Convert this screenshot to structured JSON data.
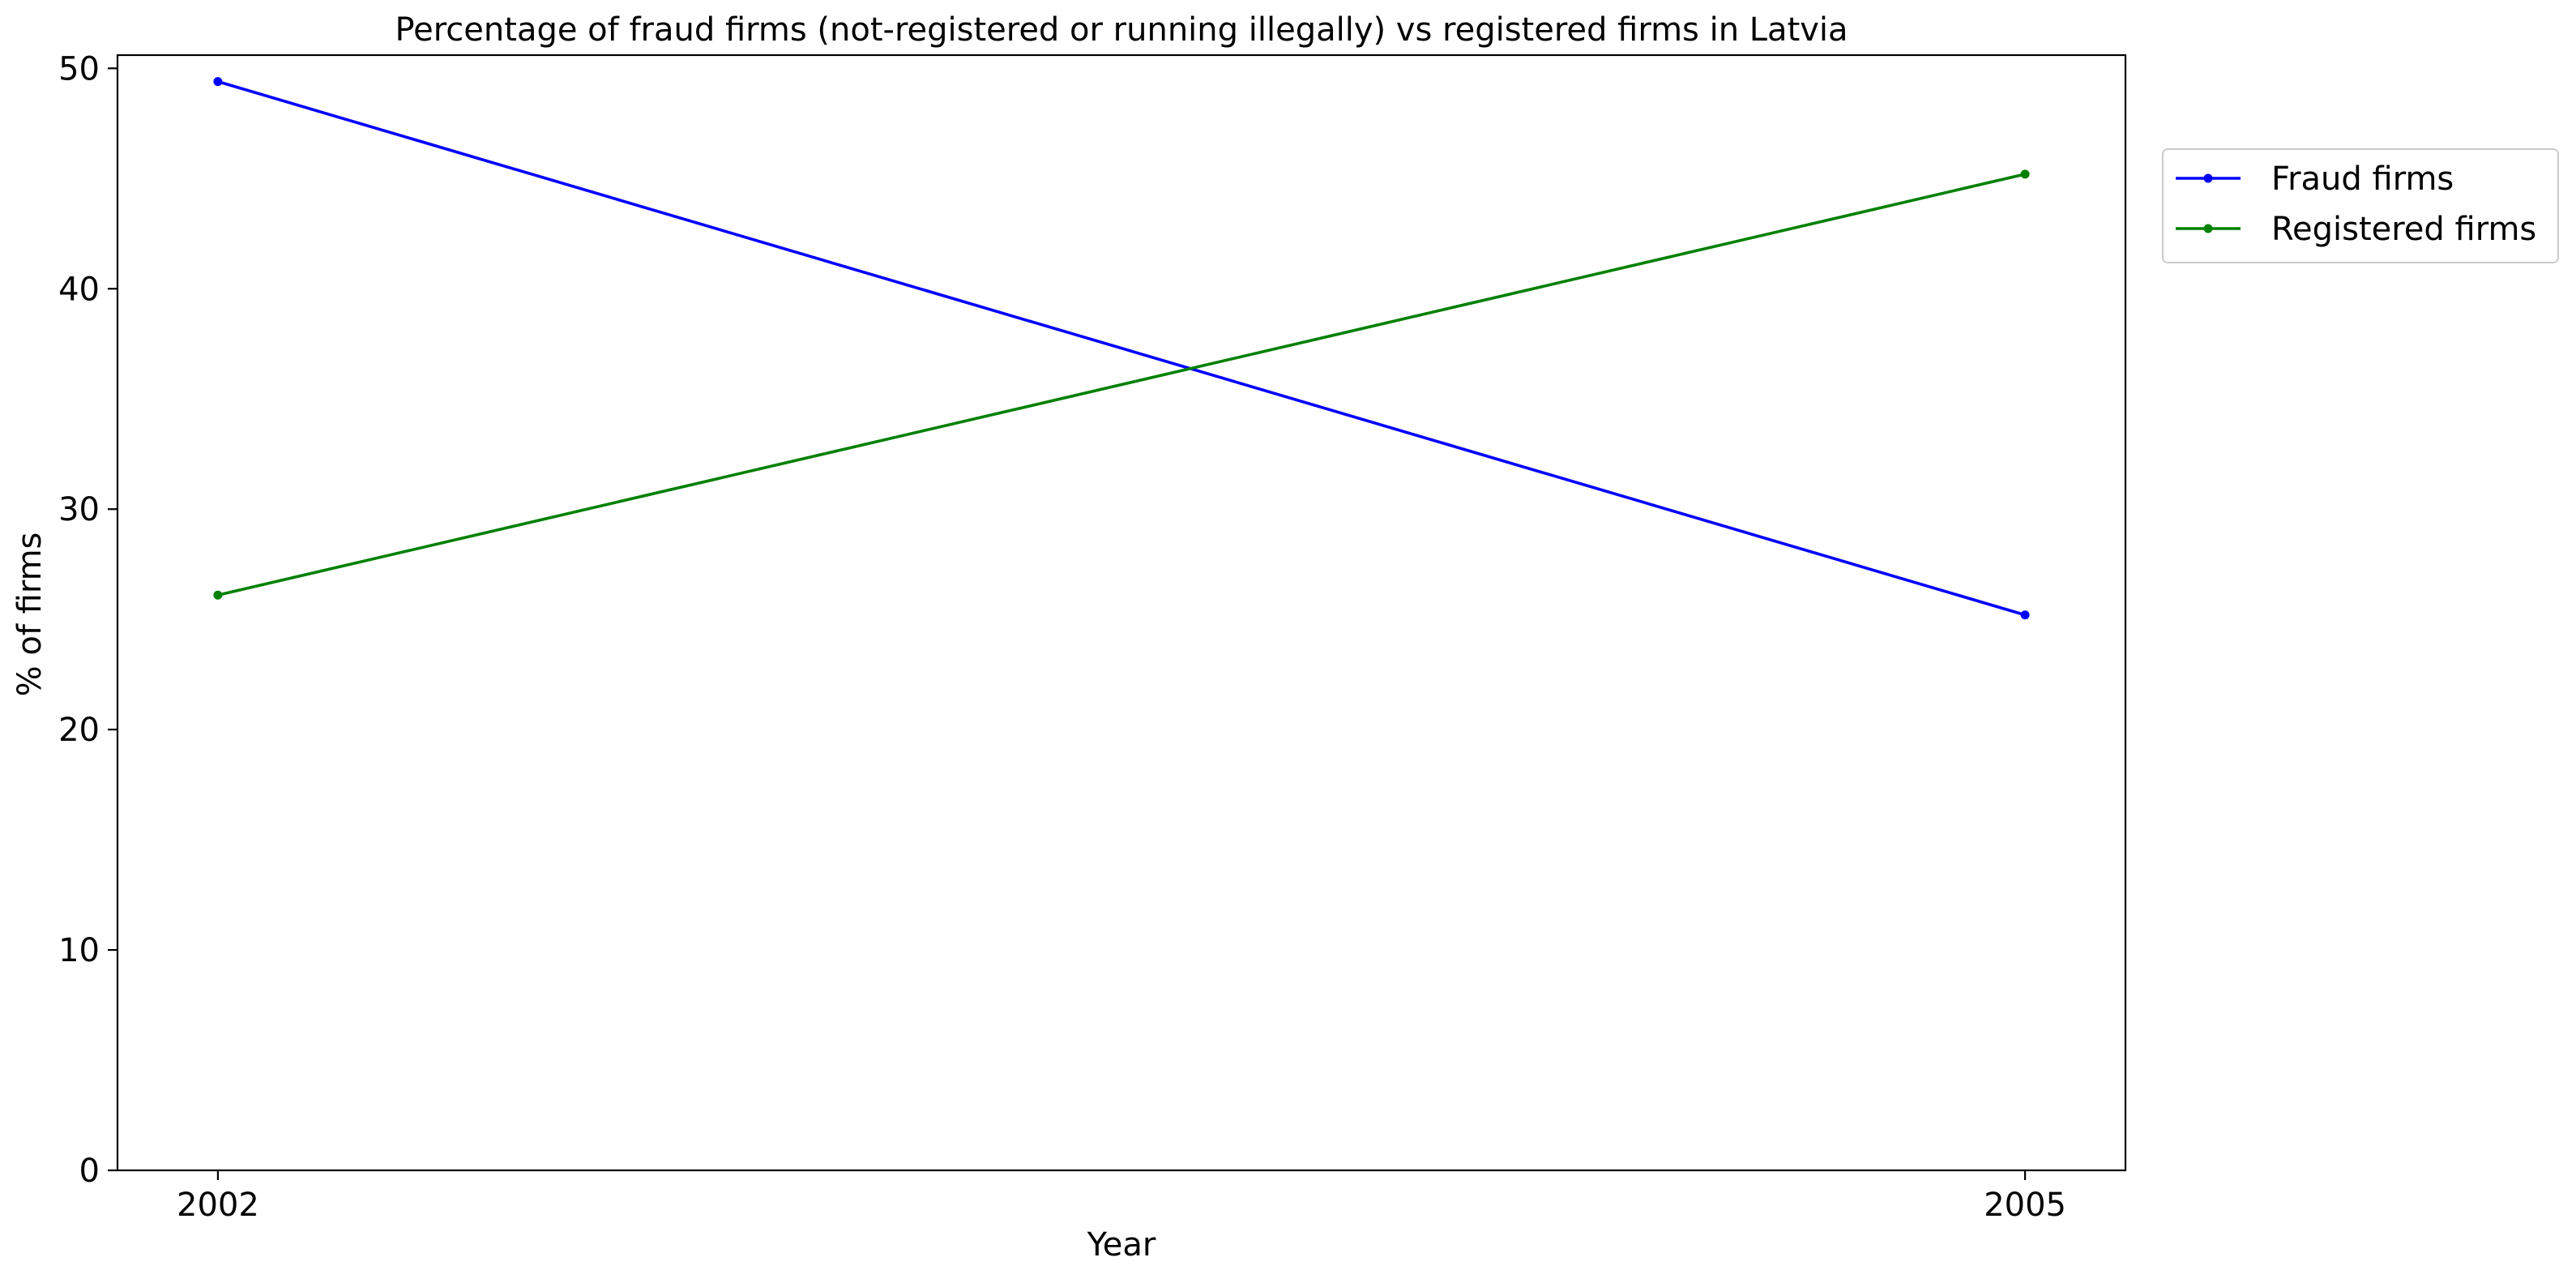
{
  "chart_data": {
    "type": "line",
    "title": "Percentage of fraud firms (not-registered or running illegally) vs registered firms in Latvia",
    "xlabel": "Year",
    "ylabel": "% of firms",
    "categories": [
      "2002",
      "2005"
    ],
    "series": [
      {
        "name": "Fraud firms",
        "values": [
          49.4,
          25.2
        ],
        "color": "#0000ff"
      },
      {
        "name": "Registered firms",
        "values": [
          26.1,
          45.2
        ],
        "color": "#008000"
      }
    ],
    "ylim": [
      0,
      50.6
    ],
    "yticks": [
      0,
      10,
      20,
      30,
      40,
      50
    ],
    "grid": false,
    "legend_position": "upper right, outside plot"
  }
}
